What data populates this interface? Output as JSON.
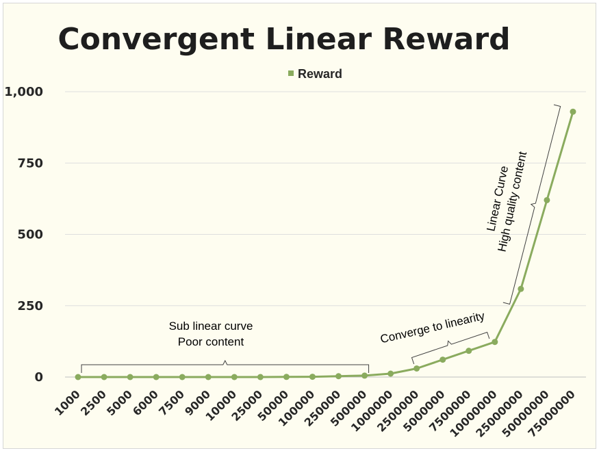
{
  "chart_data": {
    "type": "line",
    "title": "Convergent Linear Reward",
    "legend": {
      "placement": "top-center",
      "entries": [
        "Reward"
      ]
    },
    "categories": [
      "1000",
      "2500",
      "5000",
      "6000",
      "7500",
      "9000",
      "10000",
      "25000",
      "50000",
      "100000",
      "250000",
      "500000",
      "1000000",
      "2500000",
      "5000000",
      "7500000",
      "10000000",
      "25000000",
      "50000000",
      "75000000"
    ],
    "series": [
      {
        "name": "Reward",
        "color": "#8aab5e",
        "values": [
          0,
          0,
          0,
          0,
          0,
          0,
          0,
          0,
          0.5,
          1,
          3,
          5,
          12,
          30,
          61,
          92,
          123,
          309,
          620,
          930
        ]
      }
    ],
    "ylim": [
      0,
      1000
    ],
    "yticks": [
      0,
      250,
      500,
      750,
      1000
    ],
    "ytick_labels": [
      "0",
      "250",
      "500",
      "750",
      "1,000"
    ],
    "grid": true,
    "xlabel": "",
    "ylabel": "",
    "annotations": [
      {
        "lines": [
          "Sub linear curve",
          "Poor content"
        ],
        "bracket": [
          "1000",
          "500000"
        ]
      },
      {
        "lines": [
          "Converge to linearity"
        ],
        "bracket": [
          "2500000",
          "10000000"
        ]
      },
      {
        "lines": [
          "Linear Curve",
          "High quality content"
        ],
        "bracket": [
          "25000000",
          "75000000"
        ]
      }
    ]
  }
}
